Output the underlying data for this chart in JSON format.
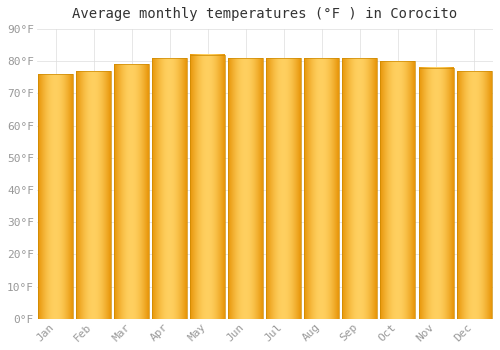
{
  "title": "Average monthly temperatures (°F ) in Corocito",
  "months": [
    "Jan",
    "Feb",
    "Mar",
    "Apr",
    "May",
    "Jun",
    "Jul",
    "Aug",
    "Sep",
    "Oct",
    "Nov",
    "Dec"
  ],
  "values": [
    76,
    77,
    79,
    81,
    82,
    81,
    81,
    81,
    81,
    80,
    78,
    77
  ],
  "ylim": [
    0,
    90
  ],
  "yticks": [
    0,
    10,
    20,
    30,
    40,
    50,
    60,
    70,
    80,
    90
  ],
  "ytick_labels": [
    "0°F",
    "10°F",
    "20°F",
    "30°F",
    "40°F",
    "50°F",
    "60°F",
    "70°F",
    "80°F",
    "90°F"
  ],
  "bar_color_center": "#FFD060",
  "bar_color_edge": "#E8960A",
  "background_color": "#FFFFFF",
  "grid_color": "#DDDDDD",
  "title_fontsize": 10,
  "tick_fontsize": 8,
  "bar_width": 0.92
}
